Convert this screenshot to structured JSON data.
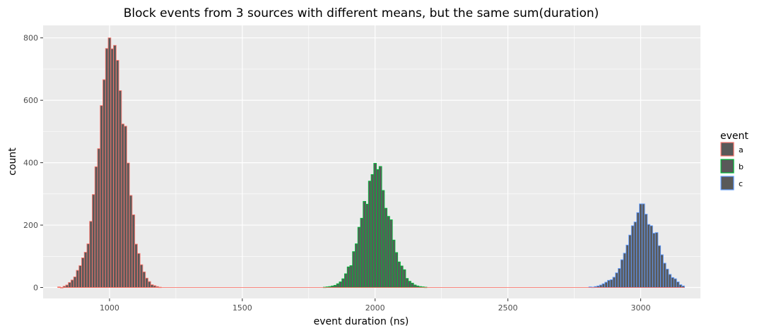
{
  "chart_data": {
    "type": "bar",
    "subtype": "histogram",
    "title": "Block events from 3 sources with different means, but the same sum(duration)",
    "xlabel": "event duration (ns)",
    "ylabel": "count",
    "xlim": [
      750,
      3225
    ],
    "ylim": [
      -35,
      840
    ],
    "xticks": [
      1000,
      1500,
      2000,
      2500,
      3000
    ],
    "yticks": [
      0,
      200,
      400,
      600,
      800
    ],
    "bin_width": 10,
    "grid": true,
    "legend_position": "right",
    "legend_title": "event",
    "colors": {
      "panel_bg": "#ebebeb",
      "grid": "#ffffff",
      "bar_fill": "#595959"
    },
    "series": [
      {
        "name": "a",
        "color": "#F8766D",
        "x": [
          810,
          820,
          830,
          840,
          850,
          860,
          870,
          880,
          890,
          900,
          910,
          920,
          930,
          940,
          950,
          960,
          970,
          980,
          990,
          1000,
          1010,
          1020,
          1030,
          1040,
          1050,
          1060,
          1070,
          1080,
          1090,
          1100,
          1110,
          1120,
          1130,
          1140,
          1150,
          1160,
          1170,
          1180,
          1190
        ],
        "values": [
          2,
          0,
          4,
          8,
          16,
          24,
          34,
          55,
          70,
          95,
          113,
          140,
          212,
          298,
          387,
          445,
          583,
          666,
          766,
          800,
          765,
          776,
          728,
          631,
          524,
          517,
          399,
          295,
          233,
          139,
          109,
          73,
          50,
          30,
          19,
          9,
          6,
          3,
          1
        ]
      },
      {
        "name": "b",
        "color": "#00BA38",
        "x": [
          1810,
          1820,
          1830,
          1840,
          1850,
          1860,
          1870,
          1880,
          1890,
          1900,
          1910,
          1920,
          1930,
          1940,
          1950,
          1960,
          1970,
          1980,
          1990,
          2000,
          2010,
          2020,
          2030,
          2040,
          2050,
          2060,
          2070,
          2080,
          2090,
          2100,
          2110,
          2120,
          2130,
          2140,
          2150,
          2160,
          2170,
          2180,
          2190
        ],
        "values": [
          1,
          2,
          3,
          5,
          7,
          12,
          18,
          28,
          44,
          66,
          70,
          115,
          140,
          193,
          222,
          276,
          267,
          341,
          362,
          398,
          378,
          388,
          311,
          254,
          228,
          217,
          152,
          112,
          82,
          69,
          57,
          29,
          20,
          14,
          8,
          5,
          3,
          2,
          1
        ]
      },
      {
        "name": "c",
        "color": "#619CFF",
        "x": [
          2810,
          2820,
          2830,
          2840,
          2850,
          2860,
          2870,
          2880,
          2890,
          2900,
          2910,
          2920,
          2930,
          2940,
          2950,
          2960,
          2970,
          2980,
          2990,
          3000,
          3010,
          3020,
          3030,
          3040,
          3050,
          3060,
          3070,
          3080,
          3090,
          3100,
          3110,
          3120,
          3130,
          3140,
          3150,
          3160
        ],
        "values": [
          2,
          1,
          3,
          5,
          8,
          12,
          17,
          23,
          25,
          33,
          47,
          61,
          89,
          110,
          136,
          168,
          198,
          210,
          240,
          268,
          268,
          235,
          202,
          198,
          174,
          176,
          134,
          105,
          78,
          59,
          42,
          32,
          28,
          18,
          9,
          5
        ]
      }
    ]
  }
}
